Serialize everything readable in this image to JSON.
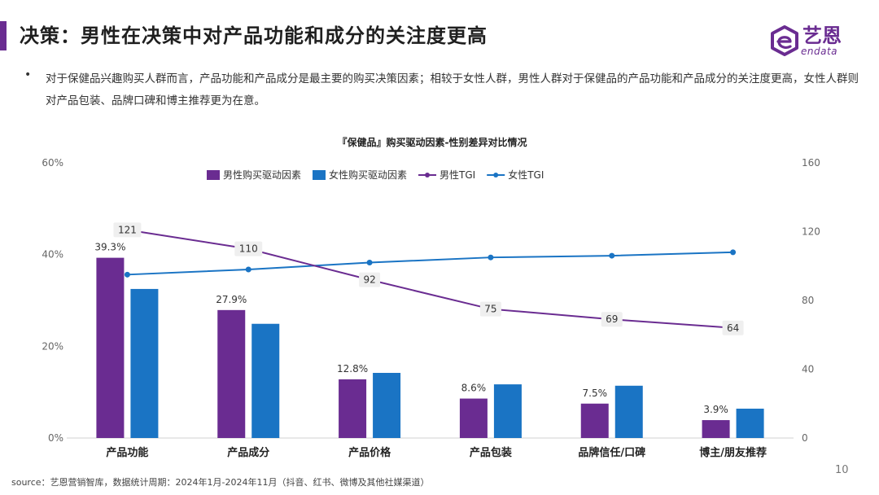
{
  "header": {
    "title": "决策：男性在决策中对产品功能和成分的关注度更高",
    "bullet": "对于保健品兴趣购买人群而言，产品功能和产品成分是最主要的购买决策因素；相较于女性人群，男性人群对于保健品的产品功能和产品成分的关注度更高，女性人群则对产品包装、品牌口碑和博主推荐更为在意。"
  },
  "logo": {
    "cn": "艺恩",
    "en": "endata"
  },
  "colors": {
    "male": "#6a2c91",
    "female": "#1a74c4",
    "accent": "#6a2c91"
  },
  "chart_data": {
    "type": "bar",
    "title": "『保健品』购买驱动因素-性别差异对比情况",
    "categories": [
      "产品功能",
      "产品成分",
      "产品价格",
      "产品包装",
      "品牌信任/口碑",
      "博主/朋友推荐"
    ],
    "series": [
      {
        "name": "男性购买驱动因素",
        "kind": "bar",
        "axis": "left",
        "values": [
          39.3,
          27.9,
          12.8,
          8.6,
          7.5,
          3.9
        ],
        "labels": [
          "39.3%",
          "27.9%",
          "12.8%",
          "8.6%",
          "7.5%",
          "3.9%"
        ]
      },
      {
        "name": "女性购买驱动因素",
        "kind": "bar",
        "axis": "left",
        "values": [
          32.5,
          24.9,
          14.2,
          11.7,
          11.4,
          6.4
        ]
      },
      {
        "name": "男性TGI",
        "kind": "line",
        "axis": "right",
        "values": [
          121,
          110,
          92,
          75,
          69,
          64
        ],
        "labels": [
          "121",
          "110",
          "92",
          "75",
          "69",
          "64"
        ]
      },
      {
        "name": "女性TGI",
        "kind": "line",
        "axis": "right",
        "values": [
          95,
          98,
          102,
          105,
          106,
          108
        ]
      }
    ],
    "y_left": {
      "min": 0,
      "max": 60,
      "ticks": [
        "0%",
        "20%",
        "40%",
        "60%"
      ]
    },
    "y_right": {
      "min": 0,
      "max": 160,
      "ticks": [
        "0",
        "40",
        "80",
        "120",
        "160"
      ]
    },
    "legend_position": "top-center",
    "grid": false
  },
  "footer": {
    "source": "source：艺恩营销智库，数据统计周期：2024年1月-2024年11月（抖音、红书、微博及其他社媒渠道）",
    "page": "10"
  }
}
